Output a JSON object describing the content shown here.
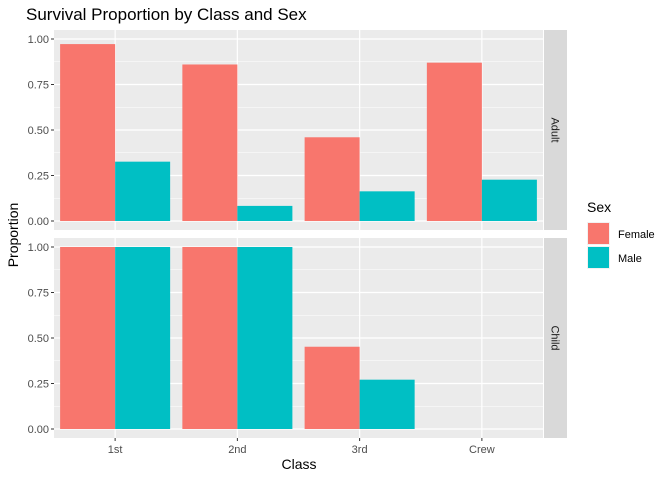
{
  "chart_data": {
    "type": "bar",
    "title": "Survival Proportion by Class and Sex",
    "xlabel": "Class",
    "ylabel": "Proportion",
    "categories": [
      "1st",
      "2nd",
      "3rd",
      "Crew"
    ],
    "ylim": [
      0,
      1
    ],
    "yticks": [
      "0.00",
      "0.25",
      "0.50",
      "0.75",
      "1.00"
    ],
    "grid": true,
    "legend": {
      "title": "Sex",
      "position": "right",
      "entries": [
        {
          "name": "Female",
          "color": "#F8766D"
        },
        {
          "name": "Male",
          "color": "#00BFC4"
        }
      ]
    },
    "panels": [
      {
        "label": "Adult",
        "series": [
          {
            "name": "Female",
            "values": [
              0.972,
              0.86,
              0.46,
              0.87
            ]
          },
          {
            "name": "Male",
            "values": [
              0.326,
              0.083,
              0.163,
              0.227
            ]
          }
        ]
      },
      {
        "label": "Child",
        "series": [
          {
            "name": "Female",
            "values": [
              1.0,
              1.0,
              0.452,
              null
            ]
          },
          {
            "name": "Male",
            "values": [
              1.0,
              1.0,
              0.271,
              null
            ]
          }
        ]
      }
    ]
  }
}
